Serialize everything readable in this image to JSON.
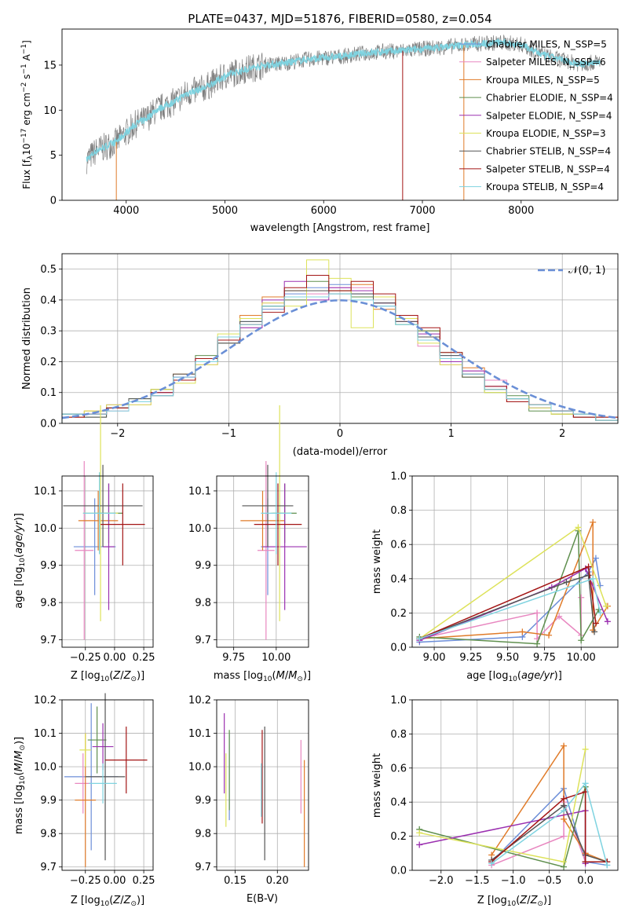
{
  "colors": {
    "series": [
      "#6c8ed8",
      "#e887c0",
      "#e07b29",
      "#5f8f4e",
      "#9b30b0",
      "#dde25a",
      "#555555",
      "#a31515",
      "#7fd3e0"
    ],
    "spectrum_data": "#7f7f7f",
    "spectrum_model": "#7fd3e0",
    "grid": "#b0b0b0",
    "normal": "#6a8fd6"
  },
  "chart_data": [
    {
      "id": "spectrum",
      "type": "line",
      "title": "PLATE=0437, MJD=51876, FIBERID=0580, z=0.054",
      "xlabel": "wavelength [Angstrom, rest frame]",
      "ylabel": "Flux [f_λ10^-17 erg cm^-2 s^-1 A^-1]",
      "xlim": [
        3350,
        8980
      ],
      "ylim": [
        0,
        19
      ],
      "xticks": [
        "4000",
        "5000",
        "6000",
        "7000",
        "8000"
      ],
      "yticks": [
        "0",
        "5",
        "10",
        "15"
      ],
      "grid": false,
      "legend_position": "top-right",
      "x": [
        3600,
        3700,
        3800,
        3900,
        4000,
        4100,
        4200,
        4300,
        4400,
        4500,
        4600,
        4800,
        5000,
        5200,
        5400,
        5600,
        5800,
        6000,
        6200,
        6400,
        6600,
        6800,
        7000,
        7200,
        7400,
        7600,
        7800,
        8000,
        8200,
        8400,
        8600,
        8800
      ],
      "y": [
        4.5,
        5.5,
        6,
        6.5,
        7.5,
        8.5,
        9,
        10,
        10.5,
        11,
        11.8,
        12.5,
        13.8,
        14.5,
        15,
        15.2,
        15.6,
        15.8,
        16,
        16.3,
        16.5,
        16.6,
        16.8,
        17,
        17.2,
        17.4,
        17.5,
        17.3,
        16.2,
        15.6,
        15.1,
        15.4
      ],
      "series": [
        {
          "name": "Chabrier MILES, N_SSP=5"
        },
        {
          "name": "Salpeter MILES, N_SSP=6"
        },
        {
          "name": "Kroupa MILES, N_SSP=5"
        },
        {
          "name": "Chabrier ELODIE, N_SSP=4"
        },
        {
          "name": "Salpeter ELODIE, N_SSP=4"
        },
        {
          "name": "Kroupa ELODIE, N_SSP=3"
        },
        {
          "name": "Chabrier STELIB, N_SSP=4"
        },
        {
          "name": "Salpeter STELIB, N_SSP=4"
        },
        {
          "name": "Kroupa STELIB, N_SSP=4"
        }
      ]
    },
    {
      "id": "residuals",
      "type": "histogram",
      "xlabel": "(data-model)/error",
      "ylabel": "Normed distribution",
      "xlim": [
        -2.5,
        2.5
      ],
      "ylim": [
        0,
        0.55
      ],
      "xticks": [
        "−2",
        "−1",
        "0",
        "1",
        "2"
      ],
      "yticks": [
        "0.0",
        "0.1",
        "0.2",
        "0.3",
        "0.4",
        "0.5"
      ],
      "grid": true,
      "legend": "𝒩(0, 1)",
      "legend_position": "top-right",
      "bin_edges": [
        -2.5,
        -2.3,
        -2.1,
        -1.9,
        -1.7,
        -1.5,
        -1.3,
        -1.1,
        -0.9,
        -0.7,
        -0.5,
        -0.3,
        -0.1,
        0.1,
        0.3,
        0.5,
        0.7,
        0.9,
        1.1,
        1.3,
        1.5,
        1.7,
        1.9,
        2.1,
        2.3,
        2.5
      ],
      "histograms": [
        [
          0.03,
          0.03,
          0.05,
          0.07,
          0.1,
          0.15,
          0.21,
          0.27,
          0.33,
          0.37,
          0.42,
          0.44,
          0.45,
          0.42,
          0.38,
          0.34,
          0.28,
          0.22,
          0.16,
          0.12,
          0.08,
          0.05,
          0.04,
          0.03,
          0.02
        ],
        [
          0.02,
          0.03,
          0.04,
          0.06,
          0.09,
          0.14,
          0.19,
          0.26,
          0.31,
          0.39,
          0.4,
          0.42,
          0.44,
          0.44,
          0.39,
          0.35,
          0.25,
          0.19,
          0.17,
          0.14,
          0.07,
          0.06,
          0.04,
          0.03,
          0.01
        ],
        [
          0.02,
          0.04,
          0.05,
          0.07,
          0.11,
          0.16,
          0.2,
          0.28,
          0.35,
          0.41,
          0.43,
          0.41,
          0.43,
          0.45,
          0.37,
          0.33,
          0.3,
          0.21,
          0.18,
          0.11,
          0.07,
          0.06,
          0.03,
          0.02,
          0.02
        ],
        [
          0.03,
          0.02,
          0.05,
          0.08,
          0.11,
          0.14,
          0.22,
          0.26,
          0.34,
          0.38,
          0.4,
          0.46,
          0.43,
          0.41,
          0.39,
          0.32,
          0.3,
          0.23,
          0.15,
          0.1,
          0.09,
          0.04,
          0.03,
          0.03,
          0.01
        ],
        [
          0.02,
          0.03,
          0.06,
          0.07,
          0.1,
          0.15,
          0.21,
          0.28,
          0.31,
          0.4,
          0.46,
          0.4,
          0.44,
          0.43,
          0.39,
          0.33,
          0.29,
          0.2,
          0.17,
          0.12,
          0.08,
          0.05,
          0.04,
          0.02,
          0.01
        ],
        [
          0.02,
          0.04,
          0.06,
          0.06,
          0.11,
          0.13,
          0.19,
          0.29,
          0.34,
          0.39,
          0.38,
          0.53,
          0.47,
          0.31,
          0.41,
          0.34,
          0.26,
          0.19,
          0.15,
          0.1,
          0.08,
          0.05,
          0.03,
          0.02,
          0.01
        ],
        [
          0.03,
          0.02,
          0.05,
          0.08,
          0.09,
          0.16,
          0.2,
          0.26,
          0.33,
          0.38,
          0.43,
          0.43,
          0.42,
          0.42,
          0.39,
          0.33,
          0.28,
          0.22,
          0.15,
          0.11,
          0.08,
          0.06,
          0.04,
          0.02,
          0.01
        ],
        [
          0.02,
          0.03,
          0.05,
          0.07,
          0.1,
          0.14,
          0.21,
          0.27,
          0.32,
          0.36,
          0.44,
          0.48,
          0.43,
          0.46,
          0.42,
          0.35,
          0.31,
          0.23,
          0.16,
          0.12,
          0.07,
          0.06,
          0.04,
          0.02,
          0.02
        ],
        [
          0.03,
          0.03,
          0.04,
          0.07,
          0.09,
          0.15,
          0.2,
          0.28,
          0.32,
          0.38,
          0.41,
          0.41,
          0.42,
          0.4,
          0.38,
          0.32,
          0.27,
          0.21,
          0.16,
          0.11,
          0.08,
          0.06,
          0.04,
          0.03,
          0.01
        ]
      ]
    },
    {
      "id": "age-vs-z",
      "type": "errorbar",
      "xlabel": "Z [log10(Z/Z⊙)]",
      "ylabel": "age [log10(age/yr)]",
      "xlim": [
        -0.45,
        0.33
      ],
      "ylim": [
        9.68,
        10.14
      ],
      "xticks": [
        "−0.25",
        "0.00",
        "0.25"
      ],
      "yticks": [
        "9.7",
        "9.8",
        "9.9",
        "10.0",
        "10.1"
      ],
      "grid": true,
      "points": [
        {
          "x": -0.17,
          "xerr": 0.18,
          "y": 9.95,
          "yerr": 0.13
        },
        {
          "x": -0.26,
          "xerr": 0.08,
          "y": 9.94,
          "yerr": 0.24
        },
        {
          "x": -0.14,
          "xerr": 0.17,
          "y": 10.02,
          "yerr": 0.08
        },
        {
          "x": -0.05,
          "xerr": 0.12,
          "y": 10.04,
          "yerr": 0.08
        },
        {
          "x": -0.05,
          "xerr": 0.05,
          "y": 9.95,
          "yerr": 0.17
        },
        {
          "x": -0.12,
          "xerr": 0.15,
          "y": 10.04,
          "yerr": 0.29
        },
        {
          "x": -0.1,
          "xerr": 0.34,
          "y": 10.06,
          "yerr": 0.11
        },
        {
          "x": 0.07,
          "xerr": 0.19,
          "y": 10.01,
          "yerr": 0.11
        },
        {
          "x": -0.13,
          "xerr": 0.14,
          "y": 10.04,
          "yerr": 0.11
        }
      ]
    },
    {
      "id": "age-vs-mass",
      "type": "errorbar",
      "xlabel": "mass [log10(M/M⊙)]",
      "ylabel": "",
      "xlim": [
        9.65,
        10.19
      ],
      "ylim": [
        9.68,
        10.14
      ],
      "xticks": [
        "9.75",
        "10.00"
      ],
      "yticks": [
        "9.7",
        "9.8",
        "9.9",
        "10.0",
        "10.1"
      ],
      "grid": true,
      "points": [
        {
          "x": 9.95,
          "xerr": 0.04,
          "y": 9.95,
          "yerr": 0.13
        },
        {
          "x": 9.94,
          "xerr": 0.05,
          "y": 9.94,
          "yerr": 0.24
        },
        {
          "x": 9.92,
          "xerr": 0.13,
          "y": 10.02,
          "yerr": 0.08
        },
        {
          "x": 10.05,
          "xerr": 0.07,
          "y": 10.04,
          "yerr": 0.08
        },
        {
          "x": 10.05,
          "xerr": 0.13,
          "y": 9.95,
          "yerr": 0.17
        },
        {
          "x": 10.02,
          "xerr": 0.05,
          "y": 10.04,
          "yerr": 0.29
        },
        {
          "x": 9.95,
          "xerr": 0.15,
          "y": 10.06,
          "yerr": 0.11
        },
        {
          "x": 10.01,
          "xerr": 0.14,
          "y": 10.01,
          "yerr": 0.11
        },
        {
          "x": 10.0,
          "xerr": 0.09,
          "y": 10.04,
          "yerr": 0.11
        }
      ]
    },
    {
      "id": "weight-vs-age",
      "type": "line",
      "xlabel": "age [log10(age/yr)]",
      "ylabel": "mass weight",
      "xlim": [
        8.85,
        10.25
      ],
      "ylim": [
        0,
        1
      ],
      "xticks": [
        "9.00",
        "9.25",
        "9.50",
        "9.75",
        "10.00"
      ],
      "yticks": [
        "0.0",
        "0.2",
        "0.4",
        "0.6",
        "0.8",
        "1.0"
      ],
      "grid": true,
      "series": [
        {
          "points": [
            [
              8.9,
              0.03
            ],
            [
              9.6,
              0.06
            ],
            [
              10.05,
              0.44
            ],
            [
              10.1,
              0.52
            ],
            [
              10.13,
              0.36
            ]
          ]
        },
        {
          "points": [
            [
              8.9,
              0.05
            ],
            [
              9.7,
              0.2
            ],
            [
              9.7,
              0.05
            ],
            [
              9.85,
              0.18
            ],
            [
              10.0,
              0.07
            ],
            [
              10.0,
              0.29
            ]
          ]
        },
        {
          "points": [
            [
              8.9,
              0.05
            ],
            [
              9.6,
              0.09
            ],
            [
              9.78,
              0.07
            ],
            [
              10.08,
              0.73
            ],
            [
              10.08,
              0.1
            ],
            [
              10.18,
              0.24
            ]
          ]
        },
        {
          "points": [
            [
              8.9,
              0.06
            ],
            [
              9.7,
              0.02
            ],
            [
              9.98,
              0.68
            ],
            [
              10.0,
              0.04
            ],
            [
              10.12,
              0.22
            ]
          ]
        },
        {
          "points": [
            [
              8.9,
              0.04
            ],
            [
              9.8,
              0.35
            ],
            [
              10.03,
              0.46
            ],
            [
              10.18,
              0.15
            ]
          ]
        },
        {
          "points": [
            [
              8.9,
              0.05
            ],
            [
              9.98,
              0.7
            ],
            [
              10.17,
              0.24
            ]
          ]
        },
        {
          "points": [
            [
              8.9,
              0.05
            ],
            [
              9.9,
              0.38
            ],
            [
              10.05,
              0.42
            ],
            [
              10.09,
              0.09
            ]
          ]
        },
        {
          "points": [
            [
              8.9,
              0.05
            ],
            [
              10.05,
              0.47
            ],
            [
              10.1,
              0.14
            ]
          ]
        },
        {
          "points": [
            [
              8.9,
              0.05
            ],
            [
              10.08,
              0.4
            ],
            [
              10.13,
              0.2
            ]
          ]
        }
      ]
    },
    {
      "id": "mass-vs-z",
      "type": "errorbar",
      "xlabel": "Z [log10(Z/Z⊙)]",
      "ylabel": "mass [log10(M/M⊙)]",
      "xlim": [
        -0.45,
        0.33
      ],
      "ylim": [
        9.69,
        10.2
      ],
      "xticks": [
        "−0.25",
        "0.00",
        "0.25"
      ],
      "yticks": [
        "9.7",
        "9.8",
        "9.9",
        "10.0",
        "10.1",
        "10.2"
      ],
      "grid": true,
      "points": [
        {
          "x": -0.2,
          "xerr": 0.23,
          "y": 9.97,
          "yerr": 0.22
        },
        {
          "x": -0.27,
          "xerr": 0.07,
          "y": 9.95,
          "yerr": 0.09
        },
        {
          "x": -0.25,
          "xerr": 0.09,
          "y": 9.9,
          "yerr": 0.2
        },
        {
          "x": -0.15,
          "xerr": 0.08,
          "y": 10.08,
          "yerr": 0.1
        },
        {
          "x": -0.1,
          "xerr": 0.09,
          "y": 10.06,
          "yerr": 0.07
        },
        {
          "x": -0.25,
          "xerr": 0.05,
          "y": 10.05,
          "yerr": 0.05
        },
        {
          "x": -0.08,
          "xerr": 0.17,
          "y": 9.97,
          "yerr": 0.25
        },
        {
          "x": 0.1,
          "xerr": 0.18,
          "y": 10.02,
          "yerr": 0.1
        },
        {
          "x": -0.1,
          "xerr": 0.12,
          "y": 9.95,
          "yerr": 0.06
        }
      ]
    },
    {
      "id": "mass-vs-ebv",
      "type": "errorbar",
      "xlabel": "E(B-V)",
      "ylabel": "",
      "xlim": [
        0.128,
        0.237
      ],
      "ylim": [
        9.69,
        10.2
      ],
      "xticks": [
        "0.15",
        "0.20"
      ],
      "yticks": [
        "9.7",
        "9.8",
        "9.9",
        "10.0",
        "10.1",
        "10.2"
      ],
      "grid": true,
      "points": [
        {
          "x": 0.143,
          "y": 9.97,
          "yerr": 0.13
        },
        {
          "x": 0.228,
          "y": 9.97,
          "yerr": 0.11
        },
        {
          "x": 0.232,
          "y": 9.86,
          "yerr": 0.16
        },
        {
          "x": 0.143,
          "y": 9.99,
          "yerr": 0.12
        },
        {
          "x": 0.137,
          "y": 10.04,
          "yerr": 0.12
        },
        {
          "x": 0.139,
          "y": 9.93,
          "yerr": 0.11
        },
        {
          "x": 0.185,
          "y": 9.92,
          "yerr": 0.2
        },
        {
          "x": 0.182,
          "y": 9.97,
          "yerr": 0.14
        },
        {
          "x": 0.181,
          "y": 9.93,
          "yerr": 0.08
        }
      ]
    },
    {
      "id": "weight-vs-z",
      "type": "line",
      "xlabel": "Z [log10(Z/Z⊙)]",
      "ylabel": "mass weight",
      "xlim": [
        -2.4,
        0.45
      ],
      "ylim": [
        0,
        1
      ],
      "xticks": [
        "−2.0",
        "−1.5",
        "−1.0",
        "−0.5",
        "0.0"
      ],
      "yticks": [
        "0.0",
        "0.2",
        "0.4",
        "0.6",
        "0.8",
        "1.0"
      ],
      "grid": true,
      "series": [
        {
          "points": [
            [
              -1.3,
              0.05
            ],
            [
              -0.3,
              0.48
            ],
            [
              0.0,
              0.05
            ],
            [
              0.3,
              0.03
            ]
          ]
        },
        {
          "points": [
            [
              -1.3,
              0.03
            ],
            [
              -0.3,
              0.2
            ],
            [
              -0.3,
              0.4
            ],
            [
              0.0,
              0.05
            ]
          ]
        },
        {
          "points": [
            [
              -1.3,
              0.09
            ],
            [
              -0.3,
              0.73
            ],
            [
              -0.3,
              0.3
            ],
            [
              0.0,
              0.1
            ],
            [
              0.3,
              0.05
            ]
          ]
        },
        {
          "points": [
            [
              -2.3,
              0.24
            ],
            [
              -0.3,
              0.02
            ],
            [
              0.0,
              0.49
            ],
            [
              0.0,
              0.05
            ]
          ]
        },
        {
          "points": [
            [
              -2.3,
              0.15
            ],
            [
              0.0,
              0.35
            ],
            [
              0.0,
              0.04
            ]
          ]
        },
        {
          "points": [
            [
              -2.3,
              0.22
            ],
            [
              -0.3,
              0.05
            ],
            [
              0.0,
              0.71
            ]
          ]
        },
        {
          "points": [
            [
              -1.3,
              0.06
            ],
            [
              -0.3,
              0.38
            ],
            [
              0.0,
              0.09
            ],
            [
              0.3,
              0.05
            ]
          ]
        },
        {
          "points": [
            [
              -1.3,
              0.05
            ],
            [
              -0.3,
              0.42
            ],
            [
              0.0,
              0.46
            ],
            [
              0.0,
              0.05
            ],
            [
              0.3,
              0.05
            ]
          ]
        },
        {
          "points": [
            [
              -1.3,
              0.04
            ],
            [
              -0.3,
              0.35
            ],
            [
              0.0,
              0.51
            ],
            [
              0.3,
              0.03
            ]
          ]
        }
      ]
    }
  ]
}
